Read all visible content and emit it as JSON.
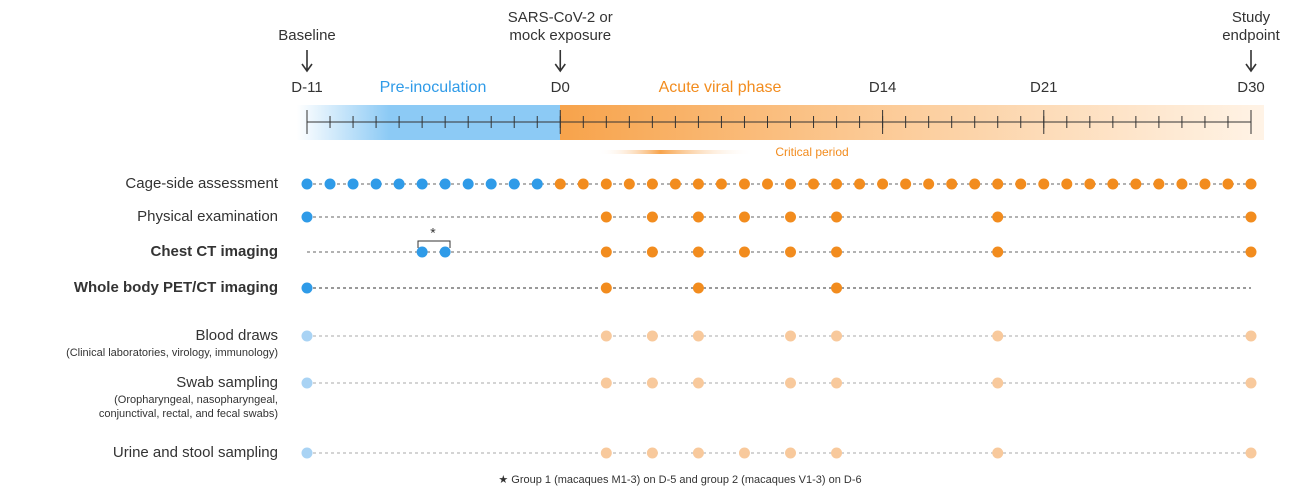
{
  "day_range": [
    -11,
    30
  ],
  "events": [
    {
      "day": -11,
      "lines": [
        "Baseline"
      ]
    },
    {
      "day": 0,
      "lines": [
        "SARS-CoV-2 or",
        "mock exposure"
      ]
    },
    {
      "day": 30,
      "lines": [
        "Study",
        "endpoint"
      ]
    }
  ],
  "ticks": [
    {
      "value": -11,
      "label": "D-11"
    },
    {
      "value": 0,
      "label": "D0"
    },
    {
      "value": 14,
      "label": "D14"
    },
    {
      "value": 21,
      "label": "D21"
    },
    {
      "value": 30,
      "label": "D30"
    }
  ],
  "phases": {
    "pre": "Pre-inoculation",
    "acute": "Acute viral phase",
    "critical": "Critical period"
  },
  "rows": [
    {
      "label": "Cage-side assessment",
      "bold": false,
      "colors": [
        "#2f9be8",
        "#f28c1e"
      ],
      "line_color": "#666",
      "days": [
        -11,
        -10,
        -9,
        -8,
        -7,
        -6,
        -5,
        -4,
        -3,
        -2,
        -1,
        0,
        1,
        2,
        3,
        4,
        5,
        6,
        7,
        8,
        9,
        10,
        11,
        12,
        13,
        14,
        15,
        16,
        17,
        18,
        19,
        20,
        21,
        22,
        23,
        24,
        25,
        26,
        27,
        28,
        29,
        30
      ]
    },
    {
      "label": "Physical examination",
      "bold": false,
      "colors": [
        "#2f9be8",
        "#f28c1e"
      ],
      "line_color": "#666",
      "days": [
        -11,
        2,
        4,
        6,
        8,
        10,
        12,
        19,
        30
      ]
    },
    {
      "label": "Chest CT imaging",
      "bold": true,
      "colors": [
        "#2f9be8",
        "#f28c1e"
      ],
      "line_color": "#666",
      "days": [
        -6,
        -5,
        2,
        4,
        6,
        8,
        10,
        12,
        19,
        30
      ]
    },
    {
      "label": "Whole body PET/CT imaging",
      "bold": true,
      "colors": [
        "#2f9be8",
        "#f28c1e"
      ],
      "line_color": "#333",
      "days": [
        -11,
        2,
        6,
        12
      ]
    },
    {
      "label": "Blood draws",
      "sublabel": [
        "(Clinical laboratories, virology, immunology)"
      ],
      "bold": false,
      "colors": [
        "#a9d3f4",
        "#f8c99c"
      ],
      "line_color": "#aaa",
      "days": [
        -11,
        2,
        4,
        6,
        10,
        12,
        19,
        30
      ]
    },
    {
      "label": "Swab sampling",
      "sublabel": [
        "(Oropharyngeal, nasopharyngeal,",
        "conjunctival, rectal, and fecal swabs)"
      ],
      "bold": false,
      "colors": [
        "#a9d3f4",
        "#f8c99c"
      ],
      "line_color": "#aaa",
      "days": [
        -11,
        2,
        4,
        6,
        10,
        12,
        19,
        30
      ]
    },
    {
      "label": "Urine and stool sampling",
      "bold": false,
      "colors": [
        "#a9d3f4",
        "#f8c99c"
      ],
      "line_color": "#aaa",
      "days": [
        -11,
        2,
        4,
        6,
        8,
        10,
        12,
        19,
        30
      ]
    }
  ],
  "star": "*",
  "footnote": "★ Group 1 (macaques M1-3) on D-5 and group 2 (macaques V1-3) on D-6"
}
